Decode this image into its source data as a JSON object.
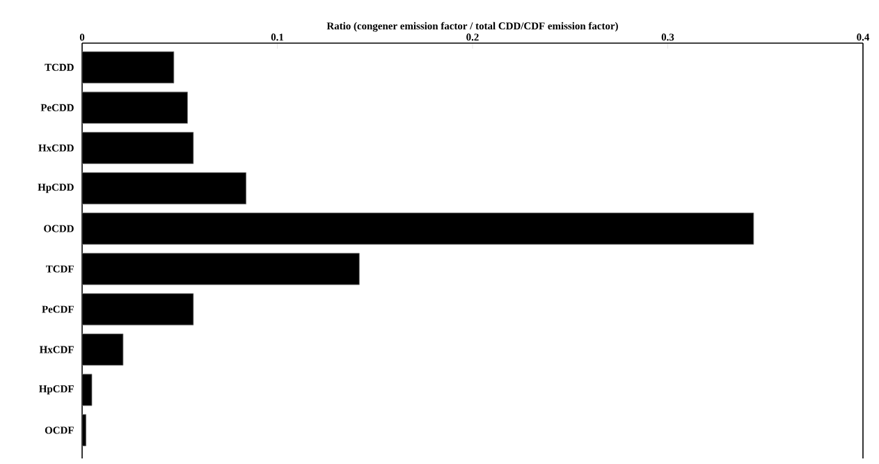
{
  "chart_data": {
    "type": "bar",
    "orientation": "horizontal",
    "xlabel": "Ratio (congener emission factor / total CDD/CDF emission factor)",
    "categories": [
      "TCDD",
      "PeCDD",
      "HxCDD",
      "HpCDD",
      "OCDD",
      "TCDF",
      "PeCDF",
      "HxCDF",
      "HpCDF",
      "OCDF"
    ],
    "values": [
      0.047,
      0.054,
      0.057,
      0.084,
      0.344,
      0.142,
      0.057,
      0.021,
      0.005,
      0.002
    ],
    "color": "#000000",
    "xlim": [
      0,
      0.4
    ],
    "xticks": [
      0,
      0.1,
      0.2,
      0.3,
      0.4
    ]
  }
}
